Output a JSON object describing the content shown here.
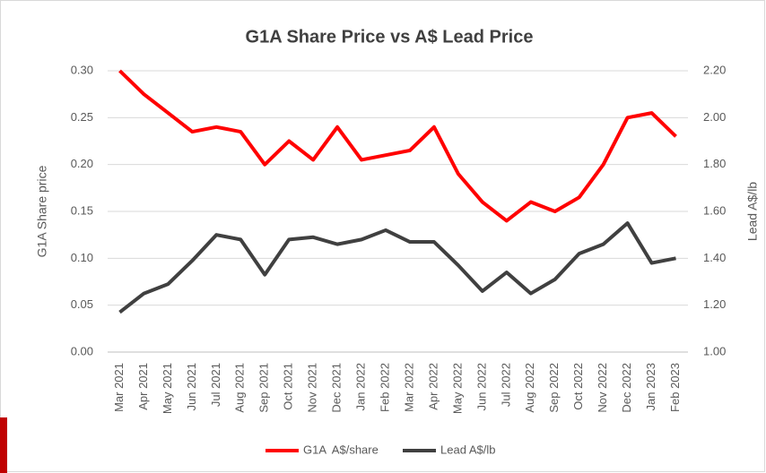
{
  "chart_data": {
    "type": "line",
    "title": "G1A Share Price vs A$ Lead Price",
    "ylabel": "G1A Share price",
    "y2label": "Lead A$/lb",
    "categories": [
      "Mar 2021",
      "Apr 2021",
      "May 2021",
      "Jun 2021",
      "Jul 2021",
      "Aug 2021",
      "Sep 2021",
      "Oct 2021",
      "Nov 2021",
      "Dec 2021",
      "Jan 2022",
      "Feb 2022",
      "Mar 2022",
      "Apr 2022",
      "May 2022",
      "Jun 2022",
      "Jul 2022",
      "Aug 2022",
      "Sep 2022",
      "Oct 2022",
      "Nov 2022",
      "Dec 2022",
      "Jan 2023",
      "Feb 2023"
    ],
    "series": [
      {
        "name": "G1A  A$/share",
        "color": "#ff0000",
        "values": [
          0.3,
          0.275,
          0.255,
          0.235,
          0.24,
          0.235,
          0.2,
          0.225,
          0.205,
          0.24,
          0.205,
          0.21,
          0.215,
          0.24,
          0.19,
          0.16,
          0.14,
          0.16,
          0.15,
          0.165,
          0.2,
          0.25,
          0.255,
          0.23
        ]
      },
      {
        "name": "Lead A$/lb",
        "color": "#404040",
        "axis": "y2",
        "values": [
          1.17,
          1.25,
          1.29,
          1.39,
          1.5,
          1.48,
          1.33,
          1.48,
          1.49,
          1.46,
          1.48,
          1.52,
          1.47,
          1.47,
          1.37,
          1.26,
          1.34,
          1.25,
          1.31,
          1.42,
          1.46,
          1.55,
          1.38,
          1.4
        ]
      }
    ],
    "ylim": [
      0,
      0.3
    ],
    "yticks": [
      {
        "value": 0,
        "label": "0.00"
      },
      0.05,
      {
        "value": 0.1,
        "label": "0.10"
      },
      0.15,
      {
        "value": 0.2,
        "label": "0.20"
      },
      0.25,
      {
        "value": 0.3,
        "label": "0.30"
      }
    ],
    "y2lim": [
      1,
      2.2
    ],
    "y2ticks": [
      {
        "value": 1,
        "label": "1.00"
      },
      {
        "value": 1.2,
        "label": "1.20"
      },
      {
        "value": 1.4,
        "label": "1.40"
      },
      {
        "value": 1.6,
        "label": "1.60"
      },
      {
        "value": 1.8,
        "label": "1.80"
      },
      {
        "value": 2,
        "label": "2.00"
      },
      {
        "value": 2.2,
        "label": "2.20"
      }
    ],
    "grid": true,
    "legend": "bottom"
  }
}
